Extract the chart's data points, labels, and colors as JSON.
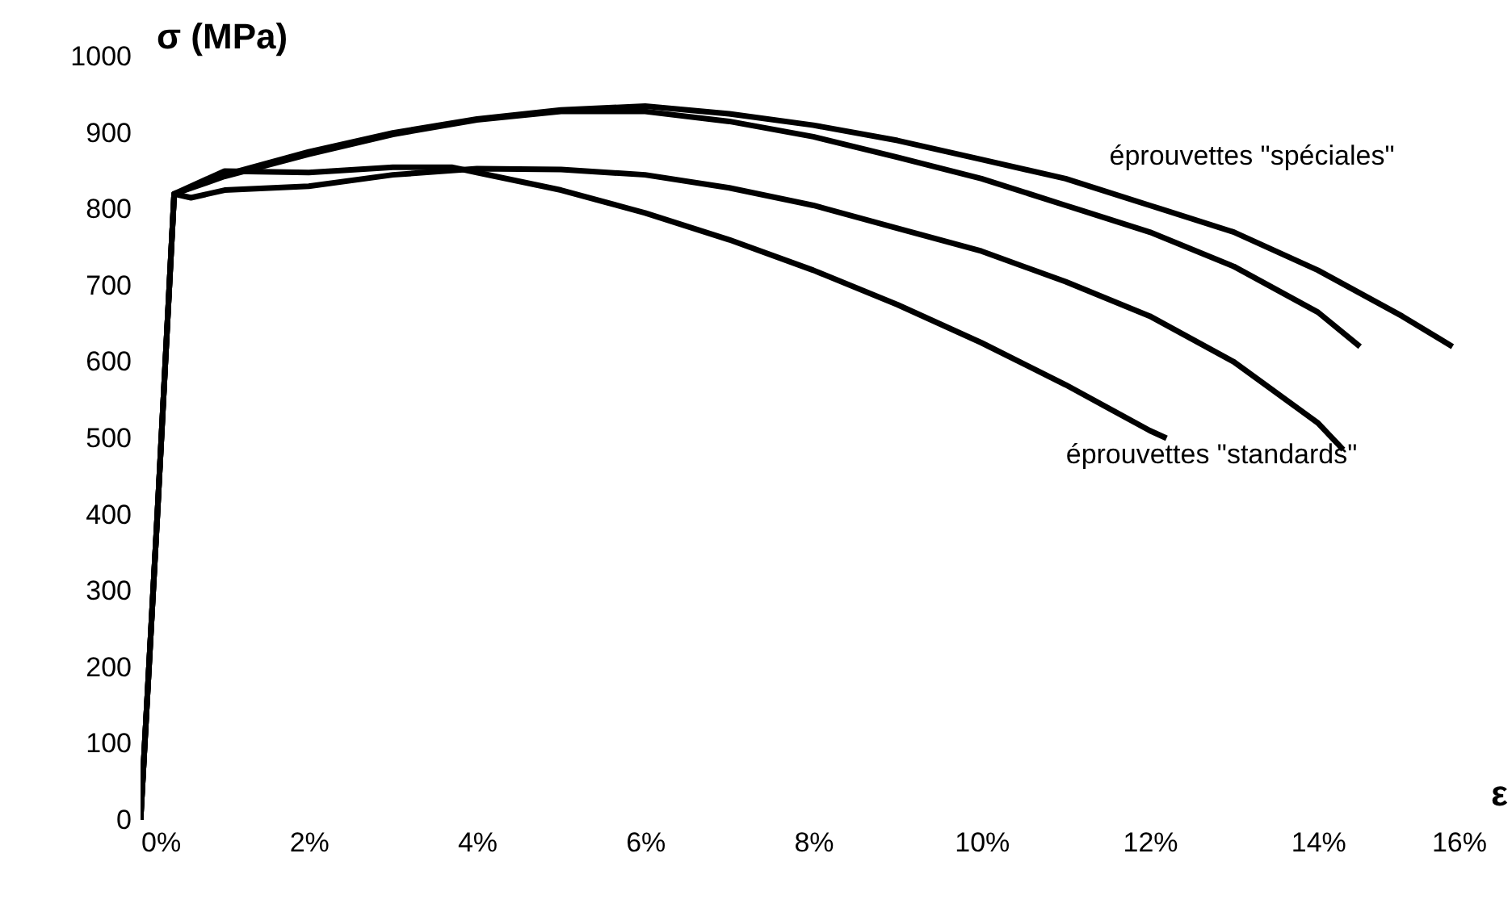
{
  "chart_data": {
    "type": "line",
    "xlabel": "ε",
    "ylabel": "σ (MPa)",
    "series": [
      {
        "color": "#000000",
        "x": [
          0,
          0.2,
          0.4,
          1,
          2,
          3,
          4,
          5,
          6,
          7,
          8,
          9,
          10,
          11,
          12,
          13,
          14,
          15,
          15.6
        ],
        "values": [
          0,
          400,
          820,
          845,
          875,
          900,
          918,
          930,
          935,
          925,
          910,
          890,
          865,
          840,
          805,
          770,
          720,
          660,
          620
        ]
      },
      {
        "color": "#000000",
        "x": [
          0,
          0.2,
          0.4,
          1,
          2,
          3,
          4,
          5,
          6,
          7,
          8,
          9,
          10,
          11,
          12,
          13,
          14,
          14.5
        ],
        "values": [
          0,
          400,
          820,
          843,
          872,
          898,
          917,
          928,
          928,
          915,
          895,
          868,
          840,
          805,
          770,
          725,
          665,
          620
        ]
      },
      {
        "color": "#000000",
        "x": [
          0,
          0.2,
          0.4,
          0.6,
          1,
          2,
          3,
          4,
          5,
          6,
          7,
          8,
          9,
          10,
          11,
          12,
          13,
          14,
          14.3
        ],
        "values": [
          0,
          400,
          820,
          815,
          825,
          830,
          845,
          853,
          852,
          845,
          828,
          805,
          775,
          745,
          705,
          660,
          600,
          520,
          485
        ]
      },
      {
        "color": "#000000",
        "x": [
          0,
          0.2,
          0.4,
          1,
          2,
          3,
          3.7,
          4,
          5,
          6,
          7,
          8,
          9,
          10,
          11,
          12,
          12.2
        ],
        "values": [
          0,
          400,
          820,
          850,
          848,
          855,
          855,
          848,
          825,
          795,
          760,
          720,
          675,
          625,
          570,
          510,
          500
        ]
      }
    ],
    "annotations": [
      "éprouvettes \"spéciales\"",
      "éprouvettes \"standards\""
    ],
    "xlim": [
      0,
      16
    ],
    "xticks": [
      {
        "value": 0,
        "label": "0%"
      },
      {
        "value": 2,
        "label": "2%"
      },
      {
        "value": 4,
        "label": "4%"
      },
      {
        "value": 6,
        "label": "6%"
      },
      {
        "value": 8,
        "label": "8%"
      },
      {
        "value": 10,
        "label": "10%"
      },
      {
        "value": 12,
        "label": "12%"
      },
      {
        "value": 14,
        "label": "14%"
      },
      {
        "value": 16,
        "label": "16%"
      }
    ],
    "ylim": [
      0,
      1000
    ],
    "yticks": [
      0,
      100,
      200,
      300,
      400,
      500,
      600,
      700,
      800,
      900,
      1000
    ],
    "grid": false,
    "line_style": "solid",
    "marker": "none"
  }
}
